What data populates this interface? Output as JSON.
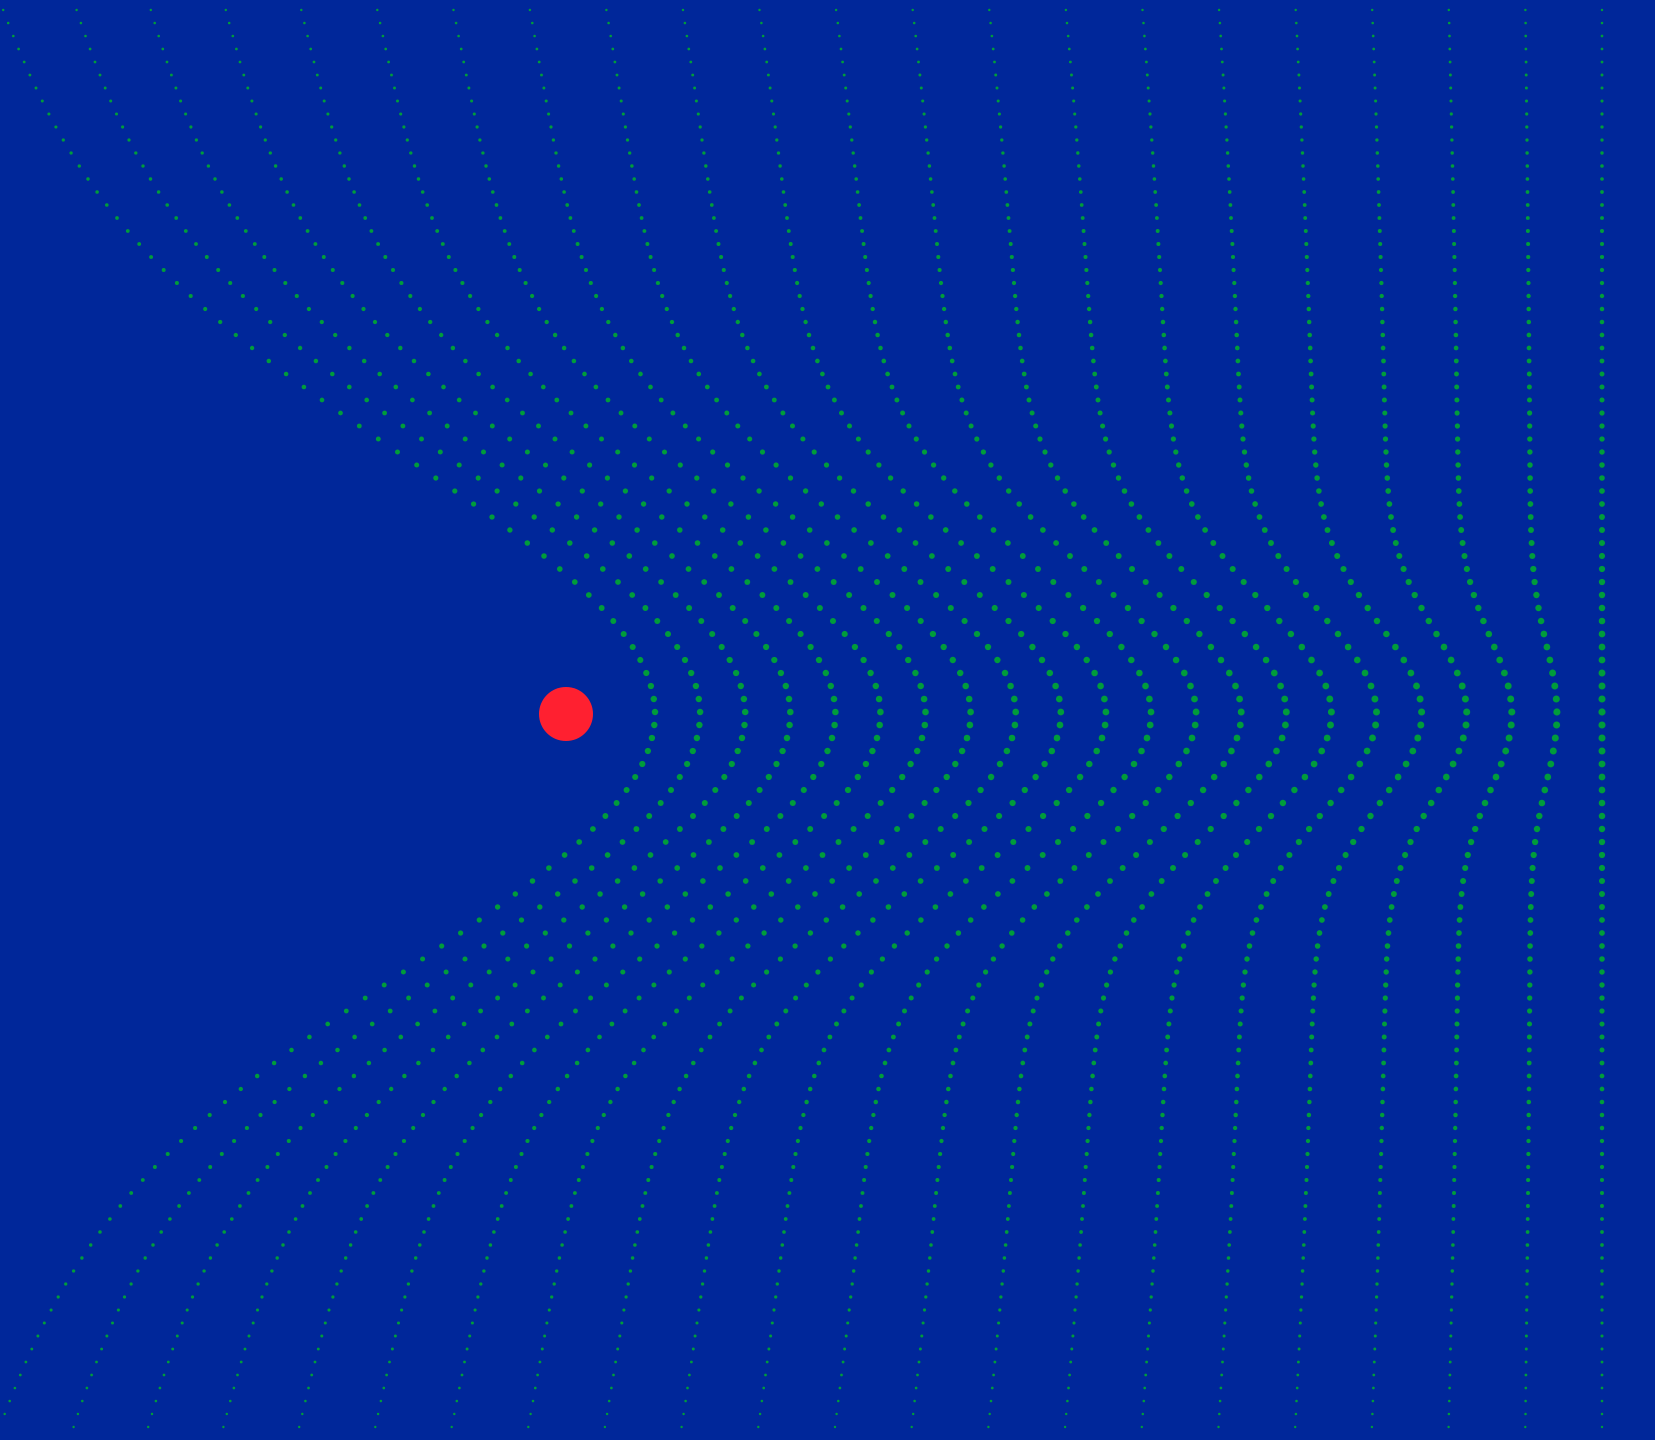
{
  "colors": {
    "background": "#00279a",
    "dots": "#009c3b",
    "attractor": "#ff2030"
  },
  "icons": {
    "attractor": "red-circle",
    "field": "green-dot-grid"
  }
}
